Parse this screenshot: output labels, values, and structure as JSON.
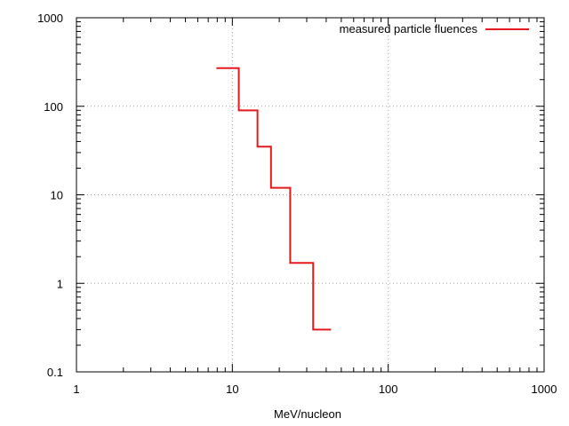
{
  "chart_data": {
    "type": "line",
    "xlabel": "MeV/nucleon",
    "ylabel": "",
    "title": "",
    "xscale": "log",
    "yscale": "log",
    "xlim": [
      1,
      1000
    ],
    "ylim": [
      0.1,
      1000
    ],
    "grid": true,
    "legend_position": "top-right",
    "x_ticks": [
      1,
      10,
      100,
      1000
    ],
    "x_tick_labels": [
      "1",
      "10",
      "100",
      "1000"
    ],
    "y_ticks": [
      0.1,
      1,
      10,
      100,
      1000
    ],
    "y_tick_labels": [
      "0.1",
      "1",
      "10",
      "100",
      "1000"
    ],
    "series": [
      {
        "name": "measured particle fluences",
        "color": "#e41a1c",
        "style": "histogram-steps",
        "bins": [
          {
            "x_start": 7.9,
            "x_end": 11.0,
            "y": 270
          },
          {
            "x_start": 11.0,
            "x_end": 14.5,
            "y": 90
          },
          {
            "x_start": 14.5,
            "x_end": 17.7,
            "y": 35
          },
          {
            "x_start": 17.7,
            "x_end": 23.5,
            "y": 12
          },
          {
            "x_start": 23.5,
            "x_end": 33.0,
            "y": 1.7
          },
          {
            "x_start": 33.0,
            "x_end": 43.0,
            "y": 0.3
          }
        ]
      }
    ]
  }
}
